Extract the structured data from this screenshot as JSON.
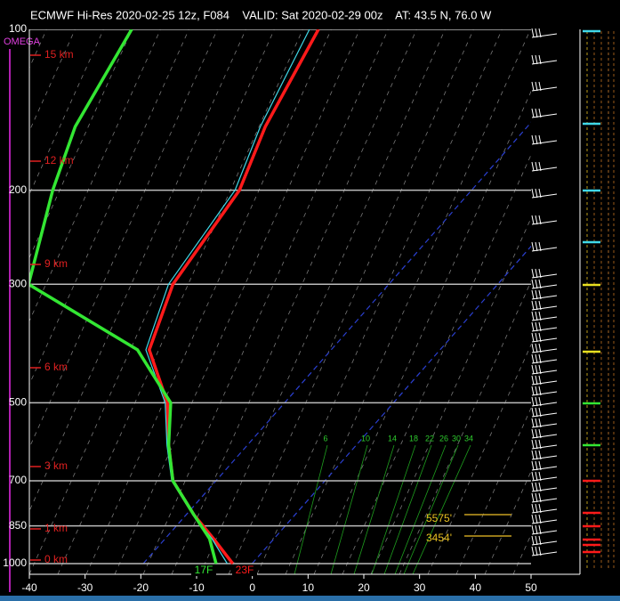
{
  "chart_data": {
    "type": "skew-t",
    "title": "ECMWF Hi-Res 2020-02-25 12z, F084    VALID: Sat 2020-02-29 00z    AT: 43.5 N, 76.0 W",
    "pressure": [
      1000,
      898,
      810,
      700,
      600,
      500,
      398,
      300,
      200,
      152,
      100
    ],
    "series": [
      {
        "color": "#ff1a1a",
        "values": [
          -3.5,
          -10.9,
          -18.2,
          -27.3,
          -33.7,
          -40.6,
          -52.2,
          -58.3,
          -61.2,
          -66.6,
          -72.4
        ]
      },
      {
        "color": "#33e633",
        "values": [
          -6.5,
          -11.6,
          -18.2,
          -27.3,
          -33.7,
          -40.0,
          -54.3,
          -84.2,
          -94.7,
          -100.7,
          -105.9
        ]
      },
      {
        "color": "#40d8e8",
        "values": [
          -4.5,
          -11.2,
          -18.4,
          -27.5,
          -34.0,
          -41.0,
          -52.8,
          -59.1,
          -62.0,
          -67.5,
          -74.0
        ]
      }
    ],
    "xlim": [
      -40,
      50
    ],
    "xticks": [
      -40,
      -30,
      -20,
      -10,
      0,
      10,
      20,
      30,
      40,
      50
    ],
    "ylim": [
      100,
      1000
    ],
    "yticks": [
      100,
      200,
      300,
      500,
      700,
      850,
      1000
    ],
    "log_y": true,
    "grid": true,
    "height_labels": [
      "15 km",
      "12 km",
      "9 km",
      "6 km",
      "3 km",
      "1 km",
      "0 km"
    ],
    "mixing_ratio_labels": [
      6,
      10,
      14,
      18,
      22,
      26,
      30,
      34
    ],
    "omega_label": "OMEGA",
    "surface_labels": [
      "17F",
      "23F"
    ],
    "level_labels": [
      "5575'",
      "3454'"
    ]
  }
}
